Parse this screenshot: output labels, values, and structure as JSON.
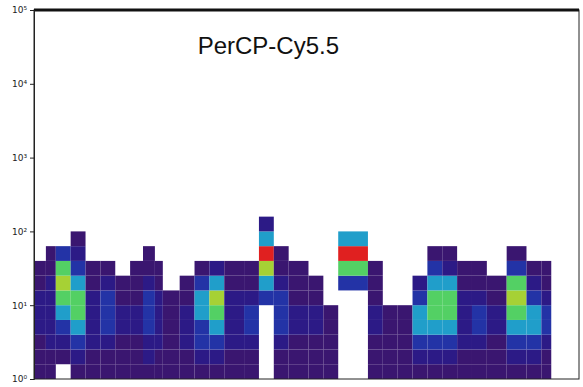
{
  "chart_data": {
    "type": "heatmap",
    "title": "PerCP-Cy5.5",
    "log": "y",
    "tick_labels": "y",
    "xlim": [
      0,
      550
    ],
    "ylim": [
      1,
      100000
    ],
    "yticks": [
      {
        "value": 1,
        "label": "10⁰"
      },
      {
        "value": 10,
        "label": "10¹"
      },
      {
        "value": 100,
        "label": "10²"
      },
      {
        "value": 1000,
        "label": "10³"
      },
      {
        "value": 10000,
        "label": "10⁴"
      },
      {
        "value": 100000,
        "label": "10⁵"
      }
    ],
    "x_edges": [
      0,
      12,
      22,
      37,
      52,
      67,
      82,
      97,
      110,
      122,
      130,
      147,
      162,
      177,
      192,
      212,
      227,
      242,
      257,
      277,
      292,
      307,
      337,
      352,
      367,
      382,
      397,
      412,
      427,
      442,
      457,
      477,
      497,
      512,
      522
    ],
    "y_edges": [
      1,
      1.585,
      2.512,
      3.981,
      6.31,
      10,
      15.85,
      25.12,
      39.81,
      63.1,
      100,
      158.5
    ],
    "cells": [
      [
        1,
        1,
        1,
        2,
        2,
        2,
        1,
        1
      ],
      [
        1,
        1,
        2,
        2,
        2,
        2,
        2,
        1,
        1
      ],
      [
        null,
        1,
        2,
        3,
        5,
        7,
        8,
        7,
        3
      ],
      [
        1,
        2,
        3,
        5,
        7,
        7,
        5,
        3,
        2,
        1
      ],
      [
        1,
        1,
        2,
        2,
        2,
        2,
        1,
        1
      ],
      [
        1,
        1,
        2,
        3,
        3,
        3,
        2,
        1
      ],
      [
        1,
        1,
        1,
        2,
        2,
        1,
        1
      ],
      [
        1,
        1,
        1,
        2,
        2,
        1,
        1,
        1
      ],
      [
        1,
        2,
        2,
        3,
        3,
        3,
        2,
        1,
        1
      ],
      [
        1,
        1,
        2,
        2,
        2,
        2,
        1,
        1
      ],
      [
        1,
        1,
        1,
        1,
        1,
        1
      ],
      [
        1,
        1,
        2,
        2,
        2,
        1,
        1
      ],
      [
        1,
        2,
        3,
        3,
        5,
        5,
        3,
        1
      ],
      [
        1,
        2,
        3,
        5,
        7,
        8,
        5,
        2
      ],
      [
        1,
        1,
        2,
        2,
        2,
        2,
        1,
        1
      ],
      [
        1,
        1,
        2,
        3,
        3,
        2,
        1,
        1
      ],
      [
        null,
        null,
        null,
        null,
        null,
        3,
        5,
        8,
        10,
        5,
        2
      ],
      [
        1,
        1,
        2,
        3,
        3,
        3,
        2,
        1,
        1
      ],
      [
        1,
        1,
        1,
        2,
        2,
        1,
        1,
        1
      ],
      [
        1,
        1,
        1,
        2,
        2,
        1,
        1
      ],
      [
        1,
        1,
        1,
        1,
        1
      ],
      [
        null,
        null,
        null,
        null,
        null,
        null,
        3,
        7,
        10,
        5
      ],
      [
        1,
        1,
        1,
        2,
        2,
        1,
        1,
        1
      ],
      [
        1,
        1,
        1,
        1,
        1
      ],
      [
        1,
        1,
        1,
        1,
        1
      ],
      [
        1,
        2,
        3,
        5,
        5,
        3,
        2
      ],
      [
        1,
        2,
        3,
        5,
        7,
        7,
        5,
        3,
        1
      ],
      [
        1,
        2,
        3,
        5,
        7,
        7,
        5,
        2,
        1
      ],
      [
        1,
        1,
        2,
        2,
        2,
        2,
        1,
        1
      ],
      [
        1,
        1,
        2,
        3,
        3,
        2,
        1,
        1
      ],
      [
        1,
        1,
        1,
        2,
        2,
        1,
        1
      ],
      [
        1,
        2,
        3,
        5,
        7,
        8,
        7,
        3,
        1
      ],
      [
        1,
        2,
        3,
        5,
        5,
        3,
        2,
        1
      ],
      [
        1,
        1,
        2,
        3,
        3,
        2,
        1,
        1
      ]
    ]
  }
}
